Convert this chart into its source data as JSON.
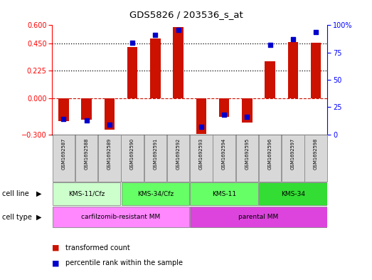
{
  "title": "GDS5826 / 203536_s_at",
  "samples": [
    "GSM1692587",
    "GSM1692588",
    "GSM1692589",
    "GSM1692590",
    "GSM1692591",
    "GSM1692592",
    "GSM1692593",
    "GSM1692594",
    "GSM1692595",
    "GSM1692596",
    "GSM1692597",
    "GSM1692598"
  ],
  "transformed_count": [
    -0.19,
    -0.18,
    -0.26,
    0.42,
    0.49,
    0.585,
    -0.295,
    -0.155,
    -0.2,
    0.305,
    0.46,
    0.455
  ],
  "percentile_rank": [
    14,
    13,
    9,
    84,
    91,
    96,
    7,
    18,
    16,
    82,
    87,
    94
  ],
  "ylim_left": [
    -0.3,
    0.6
  ],
  "ylim_right": [
    0,
    100
  ],
  "yticks_left": [
    -0.3,
    0,
    0.225,
    0.45,
    0.6
  ],
  "yticks_right": [
    0,
    25,
    50,
    75,
    100
  ],
  "ytick_right_labels": [
    "0",
    "25",
    "50",
    "75",
    "100%"
  ],
  "hlines": [
    0.225,
    0.45
  ],
  "bar_color": "#cc1100",
  "dot_color": "#0000cc",
  "cell_line_groups": [
    {
      "label": "KMS-11/Cfz",
      "start": 0,
      "end": 3,
      "color": "#ccffcc"
    },
    {
      "label": "KMS-34/Cfz",
      "start": 3,
      "end": 6,
      "color": "#66ff66"
    },
    {
      "label": "KMS-11",
      "start": 6,
      "end": 9,
      "color": "#66ff66"
    },
    {
      "label": "KMS-34",
      "start": 9,
      "end": 12,
      "color": "#33dd33"
    }
  ],
  "cell_type_groups": [
    {
      "label": "carfilzomib-resistant MM",
      "start": 0,
      "end": 6,
      "color": "#ff88ff"
    },
    {
      "label": "parental MM",
      "start": 6,
      "end": 12,
      "color": "#dd44dd"
    }
  ],
  "sample_box_color": "#d8d8d8",
  "legend_items": [
    {
      "label": "transformed count",
      "color": "#cc1100"
    },
    {
      "label": "percentile rank within the sample",
      "color": "#0000cc"
    }
  ]
}
